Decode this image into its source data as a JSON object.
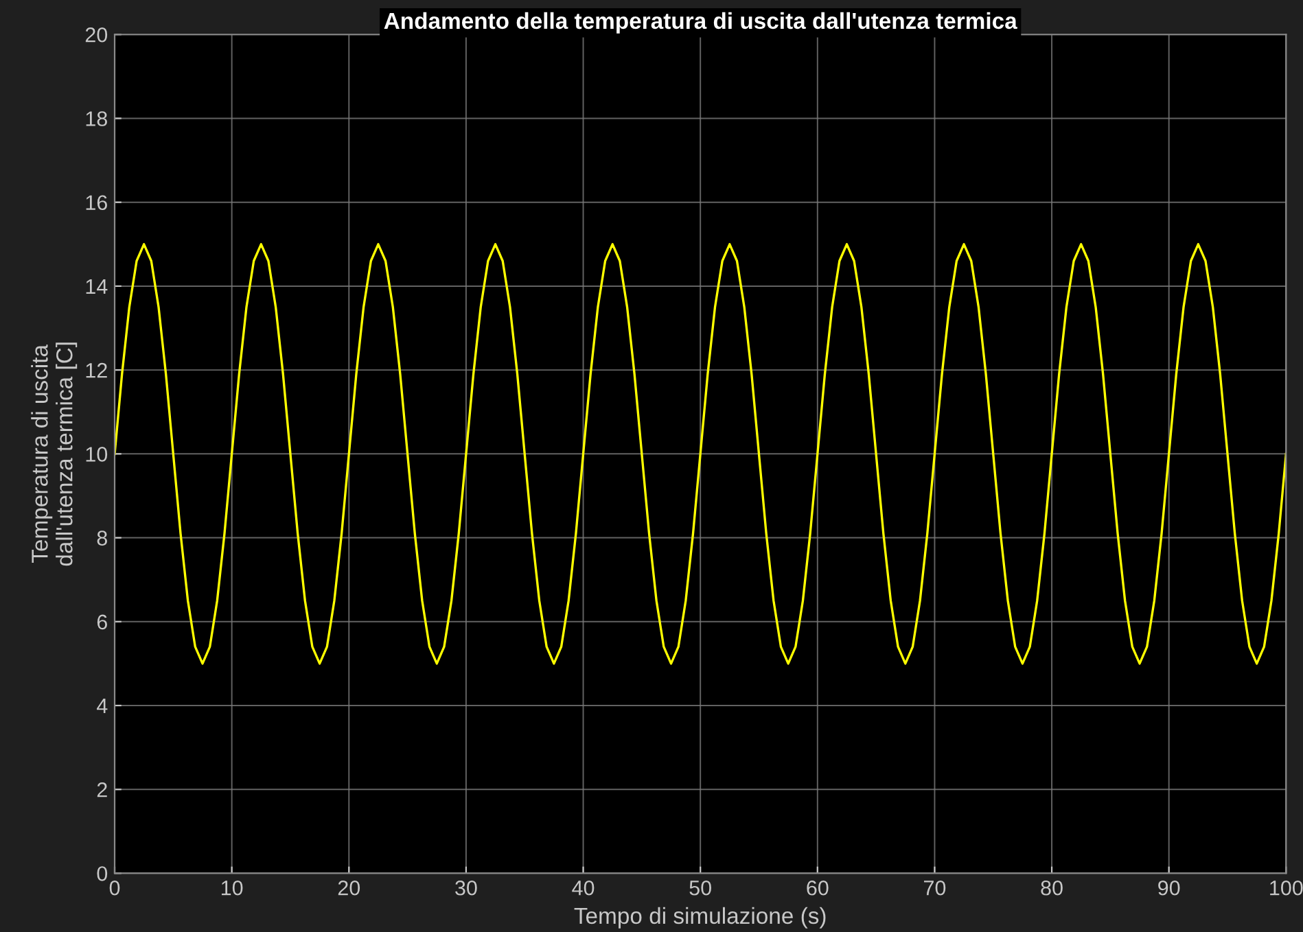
{
  "chart_data": {
    "type": "line",
    "title": "Andamento della temperatura di uscita dall'utenza termica",
    "xlabel": "Tempo di simulazione (s)",
    "ylabel": "Temperatura di uscita\ndall'utenza termica [C]",
    "x": [
      0,
      0.625,
      1.25,
      1.875,
      2.5,
      3.125,
      3.75,
      4.375,
      5,
      5.625,
      6.25,
      6.875,
      7.5,
      8.125,
      8.75,
      9.375,
      10,
      10.625,
      11.25,
      11.875,
      12.5,
      13.125,
      13.75,
      14.375,
      15,
      15.625,
      16.25,
      16.875,
      17.5,
      18.125,
      18.75,
      19.375,
      20,
      20.625,
      21.25,
      21.875,
      22.5,
      23.125,
      23.75,
      24.375,
      25,
      25.625,
      26.25,
      26.875,
      27.5,
      28.125,
      28.75,
      29.375,
      30,
      30.625,
      31.25,
      31.875,
      32.5,
      33.125,
      33.75,
      34.375,
      35,
      35.625,
      36.25,
      36.875,
      37.5,
      38.125,
      38.75,
      39.375,
      40,
      40.625,
      41.25,
      41.875,
      42.5,
      43.125,
      43.75,
      44.375,
      45,
      45.625,
      46.25,
      46.875,
      47.5,
      48.125,
      48.75,
      49.375,
      50,
      50.625,
      51.25,
      51.875,
      52.5,
      53.125,
      53.75,
      54.375,
      55,
      55.625,
      56.25,
      56.875,
      57.5,
      58.125,
      58.75,
      59.375,
      60,
      60.625,
      61.25,
      61.875,
      62.5,
      63.125,
      63.75,
      64.375,
      65,
      65.625,
      66.25,
      66.875,
      67.5,
      68.125,
      68.75,
      69.375,
      70,
      70.625,
      71.25,
      71.875,
      72.5,
      73.125,
      73.75,
      74.375,
      75,
      75.625,
      76.25,
      76.875,
      77.5,
      78.125,
      78.75,
      79.375,
      80,
      80.625,
      81.25,
      81.875,
      82.5,
      83.125,
      83.75,
      84.375,
      85,
      85.625,
      86.25,
      86.875,
      87.5,
      88.125,
      88.75,
      89.375,
      90,
      90.625,
      91.25,
      91.875,
      92.5,
      93.125,
      93.75,
      94.375,
      95,
      95.625,
      96.25,
      96.875,
      97.5,
      98.125,
      98.75,
      99.375,
      100
    ],
    "series": [
      {
        "color": "#ffff00",
        "values": [
          10,
          11.9,
          13.5,
          14.6,
          15,
          14.6,
          13.5,
          11.9,
          10,
          8.1,
          6.5,
          5.4,
          5,
          5.4,
          6.5,
          8.1,
          10,
          11.9,
          13.5,
          14.6,
          15,
          14.6,
          13.5,
          11.9,
          10,
          8.1,
          6.5,
          5.4,
          5,
          5.4,
          6.5,
          8.1,
          10,
          11.9,
          13.5,
          14.6,
          15,
          14.6,
          13.5,
          11.9,
          10,
          8.1,
          6.5,
          5.4,
          5,
          5.4,
          6.5,
          8.1,
          10,
          11.9,
          13.5,
          14.6,
          15,
          14.6,
          13.5,
          11.9,
          10,
          8.1,
          6.5,
          5.4,
          5,
          5.4,
          6.5,
          8.1,
          10,
          11.9,
          13.5,
          14.6,
          15,
          14.6,
          13.5,
          11.9,
          10,
          8.1,
          6.5,
          5.4,
          5,
          5.4,
          6.5,
          8.1,
          10,
          11.9,
          13.5,
          14.6,
          15,
          14.6,
          13.5,
          11.9,
          10,
          8.1,
          6.5,
          5.4,
          5,
          5.4,
          6.5,
          8.1,
          10,
          11.9,
          13.5,
          14.6,
          15,
          14.6,
          13.5,
          11.9,
          10,
          8.1,
          6.5,
          5.4,
          5,
          5.4,
          6.5,
          8.1,
          10,
          11.9,
          13.5,
          14.6,
          15,
          14.6,
          13.5,
          11.9,
          10,
          8.1,
          6.5,
          5.4,
          5,
          5.4,
          6.5,
          8.1,
          10,
          11.9,
          13.5,
          14.6,
          15,
          14.6,
          13.5,
          11.9,
          10,
          8.1,
          6.5,
          5.4,
          5,
          5.4,
          6.5,
          8.1,
          10,
          11.9,
          13.5,
          14.6,
          15,
          14.6,
          13.5,
          11.9,
          10,
          8.1,
          6.5,
          5.4,
          5,
          5.4,
          6.5,
          8.1,
          10
        ]
      }
    ],
    "xlim": [
      0,
      100
    ],
    "xticks": [
      0,
      10,
      20,
      30,
      40,
      50,
      60,
      70,
      80,
      90,
      100
    ],
    "ylim": [
      0,
      20
    ],
    "yticks": [
      0,
      2,
      4,
      6,
      8,
      10,
      12,
      14,
      16,
      18,
      20
    ],
    "grid": true
  }
}
